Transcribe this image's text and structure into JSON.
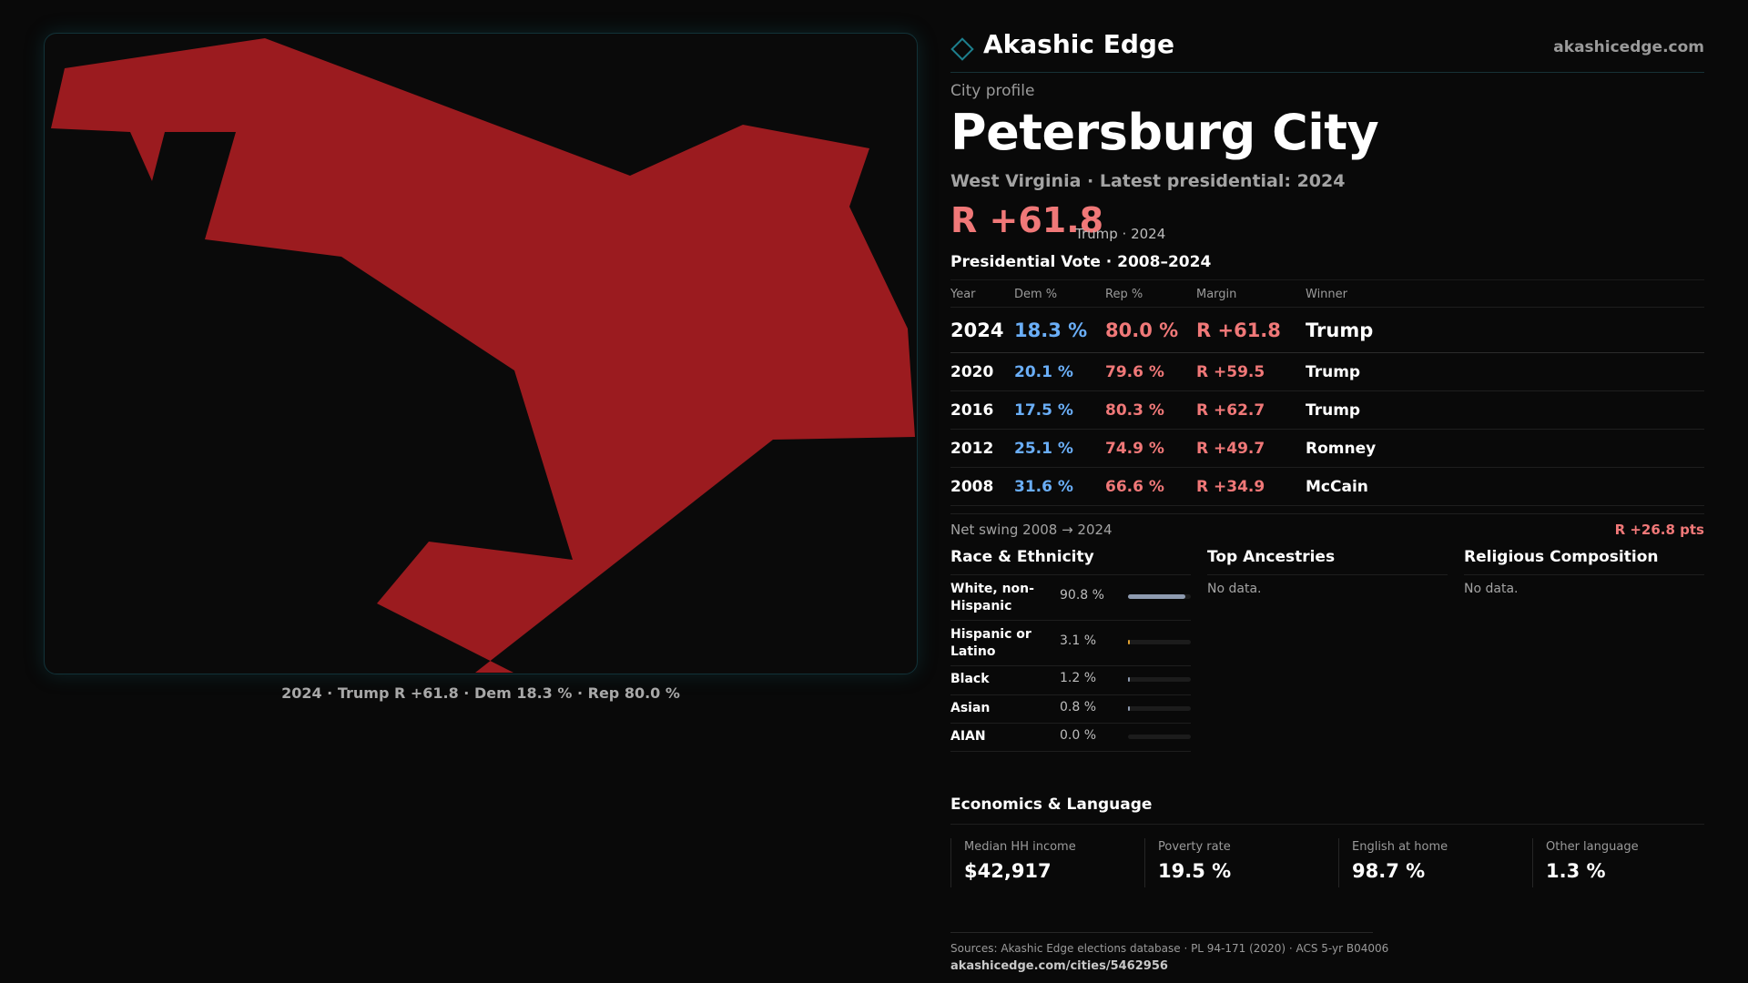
{
  "map": {
    "fill_color": "#9b1b1f",
    "caption": "2024 · Trump R +61.8 · Dem 18.3 % · Rep 80.0 %"
  },
  "header": {
    "brand": "Akashic Edge",
    "logo_icon": "diamond-icon",
    "site": "akashicedge.com"
  },
  "profile": {
    "kicker": "City profile",
    "title": "Petersburg City",
    "subtitle": "West Virginia · Latest presidential: 2024",
    "margin": "R +61.8",
    "margin_note": "Trump · 2024"
  },
  "colors": {
    "dem": "#6aaef7",
    "rep": "#f07878",
    "accent": "#1d7f8d"
  },
  "vote": {
    "heading": "Presidential Vote · 2008–2024",
    "columns": [
      "Year",
      "Dem %",
      "Rep %",
      "Margin",
      "Winner"
    ],
    "rows": [
      {
        "year": "2024",
        "dem": "18.3 %",
        "rep": "80.0 %",
        "margin": "R +61.8",
        "winner": "Trump"
      },
      {
        "year": "2020",
        "dem": "20.1 %",
        "rep": "79.6 %",
        "margin": "R +59.5",
        "winner": "Trump"
      },
      {
        "year": "2016",
        "dem": "17.5 %",
        "rep": "80.3 %",
        "margin": "R +62.7",
        "winner": "Trump"
      },
      {
        "year": "2012",
        "dem": "25.1 %",
        "rep": "74.9 %",
        "margin": "R +49.7",
        "winner": "Romney"
      },
      {
        "year": "2008",
        "dem": "31.6 %",
        "rep": "66.6 %",
        "margin": "R +34.9",
        "winner": "McCain"
      }
    ],
    "swing_label": "Net swing 2008 → 2024",
    "swing_value": "R +26.8 pts"
  },
  "race": {
    "title": "Race & Ethnicity",
    "rows": [
      {
        "label": "White, non-Hispanic",
        "value": "90.8 %",
        "pct": 90.8,
        "color": "#8e9bb0"
      },
      {
        "label": "Hispanic or Latino",
        "value": "3.1 %",
        "pct": 3.1,
        "color": "#e0a030"
      },
      {
        "label": "Black",
        "value": "1.2 %",
        "pct": 1.2,
        "color": "#8e9bb0"
      },
      {
        "label": "Asian",
        "value": "0.8 %",
        "pct": 0.8,
        "color": "#8e9bb0"
      },
      {
        "label": "AIAN",
        "value": "0.0 %",
        "pct": 0.0,
        "color": "#8e9bb0"
      }
    ]
  },
  "ancestries": {
    "title": "Top Ancestries",
    "empty": "No data."
  },
  "religion": {
    "title": "Religious Composition",
    "empty": "No data."
  },
  "economics": {
    "title": "Economics & Language",
    "cells": [
      {
        "label": "Median HH income",
        "value": "$42,917"
      },
      {
        "label": "Poverty rate",
        "value": "19.5 %"
      },
      {
        "label": "English at home",
        "value": "98.7 %"
      },
      {
        "label": "Other language",
        "value": "1.3 %"
      }
    ]
  },
  "footer": {
    "sources": "Sources: Akashic Edge elections database · PL 94-171 (2020) · ACS 5-yr B04006",
    "url": "akashicedge.com/cities/5462956"
  }
}
